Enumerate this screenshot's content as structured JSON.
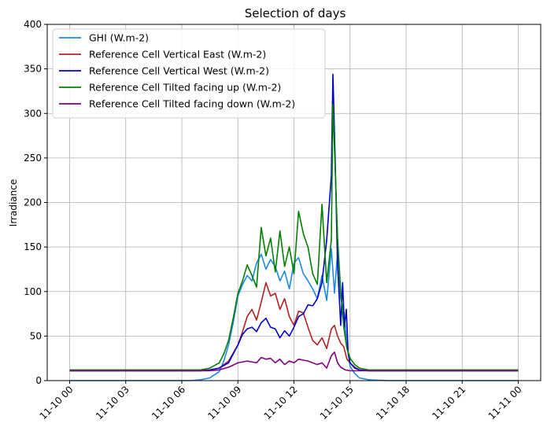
{
  "chart_data": {
    "type": "line",
    "title": "Selection of days",
    "xlabel": "",
    "ylabel": "Irradiance",
    "ylim": [
      0,
      400
    ],
    "xlim": [
      "2023-11-09 22:48",
      "2023-11-11 01:12"
    ],
    "yticks": [
      0,
      50,
      100,
      150,
      200,
      250,
      300,
      350,
      400
    ],
    "xticks": [
      {
        "value": "2023-11-10 00:00",
        "label": "11-10 00"
      },
      {
        "value": "2023-11-10 03:00",
        "label": "11-10 03"
      },
      {
        "value": "2023-11-10 06:00",
        "label": "11-10 06"
      },
      {
        "value": "2023-11-10 09:00",
        "label": "11-10 09"
      },
      {
        "value": "2023-11-10 12:00",
        "label": "11-10 12"
      },
      {
        "value": "2023-11-10 15:00",
        "label": "11-10 15"
      },
      {
        "value": "2023-11-10 18:00",
        "label": "11-10 18"
      },
      {
        "value": "2023-11-10 21:00",
        "label": "11-10 21"
      },
      {
        "value": "2023-11-11 00:00",
        "label": "11-11 00"
      }
    ],
    "grid": true,
    "legend_position": "upper-left",
    "series": [
      {
        "name": "GHI (W.m-2)",
        "color": "#1e88e5",
        "x": [
          "2023-11-10 00:00",
          "2023-11-10 06:00",
          "2023-11-10 06:30",
          "2023-11-10 07:00",
          "2023-11-10 07:30",
          "2023-11-10 08:00",
          "2023-11-10 08:15",
          "2023-11-10 08:30",
          "2023-11-10 08:45",
          "2023-11-10 09:00",
          "2023-11-10 09:15",
          "2023-11-10 09:30",
          "2023-11-10 09:45",
          "2023-11-10 10:00",
          "2023-11-10 10:15",
          "2023-11-10 10:30",
          "2023-11-10 10:45",
          "2023-11-10 11:00",
          "2023-11-10 11:15",
          "2023-11-10 11:30",
          "2023-11-10 11:45",
          "2023-11-10 12:00",
          "2023-11-10 12:15",
          "2023-11-10 12:30",
          "2023-11-10 12:45",
          "2023-11-10 13:00",
          "2023-11-10 13:15",
          "2023-11-10 13:30",
          "2023-11-10 13:45",
          "2023-11-10 14:00",
          "2023-11-10 14:10",
          "2023-11-10 14:20",
          "2023-11-10 14:30",
          "2023-11-10 14:40",
          "2023-11-10 14:50",
          "2023-11-10 15:00",
          "2023-11-10 15:15",
          "2023-11-10 15:30",
          "2023-11-10 16:00",
          "2023-11-10 17:00",
          "2023-11-11 00:00"
        ],
        "y": [
          0,
          0,
          0,
          1,
          3,
          10,
          22,
          40,
          65,
          95,
          108,
          118,
          112,
          132,
          142,
          125,
          136,
          128,
          112,
          123,
          103,
          132,
          138,
          120,
          112,
          103,
          92,
          118,
          90,
          148,
          98,
          144,
          92,
          78,
          40,
          16,
          8,
          3,
          1,
          0,
          0
        ]
      },
      {
        "name": "Reference Cell Vertical East (W.m-2)",
        "color": "#b22222",
        "x": [
          "2023-11-10 00:00",
          "2023-11-10 06:00",
          "2023-11-10 07:00",
          "2023-11-10 07:30",
          "2023-11-10 08:00",
          "2023-11-10 08:30",
          "2023-11-10 09:00",
          "2023-11-10 09:15",
          "2023-11-10 09:30",
          "2023-11-10 09:45",
          "2023-11-10 10:00",
          "2023-11-10 10:15",
          "2023-11-10 10:30",
          "2023-11-10 10:45",
          "2023-11-10 11:00",
          "2023-11-10 11:15",
          "2023-11-10 11:30",
          "2023-11-10 11:45",
          "2023-11-10 12:00",
          "2023-11-10 12:15",
          "2023-11-10 12:30",
          "2023-11-10 12:45",
          "2023-11-10 13:00",
          "2023-11-10 13:15",
          "2023-11-10 13:30",
          "2023-11-10 13:45",
          "2023-11-10 14:00",
          "2023-11-10 14:10",
          "2023-11-10 14:20",
          "2023-11-10 14:30",
          "2023-11-10 14:40",
          "2023-11-10 14:50",
          "2023-11-10 15:00",
          "2023-11-10 15:15",
          "2023-11-10 15:30",
          "2023-11-10 16:00",
          "2023-11-11 00:00"
        ],
        "y": [
          11,
          11,
          11,
          12,
          14,
          22,
          40,
          55,
          72,
          80,
          68,
          88,
          110,
          95,
          98,
          80,
          92,
          72,
          62,
          78,
          76,
          60,
          45,
          40,
          48,
          36,
          58,
          62,
          50,
          42,
          38,
          24,
          20,
          15,
          12,
          11,
          11
        ]
      },
      {
        "name": "Reference Cell Vertical West (W.m-2)",
        "color": "#0000cc",
        "x": [
          "2023-11-10 00:00",
          "2023-11-10 06:00",
          "2023-11-10 07:00",
          "2023-11-10 07:30",
          "2023-11-10 08:00",
          "2023-11-10 08:30",
          "2023-11-10 09:00",
          "2023-11-10 09:15",
          "2023-11-10 09:30",
          "2023-11-10 09:45",
          "2023-11-10 10:00",
          "2023-11-10 10:15",
          "2023-11-10 10:30",
          "2023-11-10 10:45",
          "2023-11-10 11:00",
          "2023-11-10 11:15",
          "2023-11-10 11:30",
          "2023-11-10 11:45",
          "2023-11-10 12:00",
          "2023-11-10 12:15",
          "2023-11-10 12:30",
          "2023-11-10 12:45",
          "2023-11-10 13:00",
          "2023-11-10 13:15",
          "2023-11-10 13:30",
          "2023-11-10 13:45",
          "2023-11-10 14:00",
          "2023-11-10 14:05",
          "2023-11-10 14:12",
          "2023-11-10 14:20",
          "2023-11-10 14:30",
          "2023-11-10 14:36",
          "2023-11-10 14:42",
          "2023-11-10 14:48",
          "2023-11-10 14:54",
          "2023-11-10 15:00",
          "2023-11-10 15:15",
          "2023-11-10 15:30",
          "2023-11-10 16:00",
          "2023-11-11 00:00"
        ],
        "y": [
          11,
          11,
          11,
          12,
          14,
          20,
          40,
          52,
          58,
          60,
          55,
          65,
          70,
          60,
          58,
          48,
          56,
          50,
          60,
          72,
          75,
          85,
          84,
          92,
          110,
          158,
          230,
          344,
          250,
          130,
          62,
          110,
          60,
          80,
          30,
          20,
          14,
          12,
          11,
          11
        ]
      },
      {
        "name": "Reference Cell Tilted facing up (W.m-2)",
        "color": "#008000",
        "x": [
          "2023-11-10 00:00",
          "2023-11-10 06:00",
          "2023-11-10 07:00",
          "2023-11-10 07:30",
          "2023-11-10 08:00",
          "2023-11-10 08:15",
          "2023-11-10 08:30",
          "2023-11-10 08:45",
          "2023-11-10 09:00",
          "2023-11-10 09:15",
          "2023-11-10 09:30",
          "2023-11-10 09:45",
          "2023-11-10 10:00",
          "2023-11-10 10:15",
          "2023-11-10 10:30",
          "2023-11-10 10:45",
          "2023-11-10 11:00",
          "2023-11-10 11:15",
          "2023-11-10 11:30",
          "2023-11-10 11:45",
          "2023-11-10 12:00",
          "2023-11-10 12:15",
          "2023-11-10 12:30",
          "2023-11-10 12:45",
          "2023-11-10 13:00",
          "2023-11-10 13:15",
          "2023-11-10 13:30",
          "2023-11-10 13:45",
          "2023-11-10 14:00",
          "2023-11-10 14:05",
          "2023-11-10 14:12",
          "2023-11-10 14:20",
          "2023-11-10 14:30",
          "2023-11-10 14:40",
          "2023-11-10 14:50",
          "2023-11-10 15:00",
          "2023-11-10 15:15",
          "2023-11-10 15:30",
          "2023-11-10 16:00",
          "2023-11-11 00:00"
        ],
        "y": [
          12,
          12,
          12,
          14,
          20,
          30,
          45,
          70,
          98,
          112,
          130,
          118,
          105,
          172,
          140,
          160,
          122,
          168,
          128,
          150,
          120,
          190,
          165,
          150,
          120,
          108,
          198,
          110,
          158,
          310,
          240,
          160,
          100,
          60,
          36,
          25,
          18,
          14,
          12,
          12
        ]
      },
      {
        "name": "Reference Cell Tilted facing down (W.m-2)",
        "color": "#800080",
        "x": [
          "2023-11-10 00:00",
          "2023-11-10 06:00",
          "2023-11-10 07:30",
          "2023-11-10 08:00",
          "2023-11-10 08:30",
          "2023-11-10 09:00",
          "2023-11-10 09:30",
          "2023-11-10 10:00",
          "2023-11-10 10:15",
          "2023-11-10 10:30",
          "2023-11-10 10:45",
          "2023-11-10 11:00",
          "2023-11-10 11:15",
          "2023-11-10 11:30",
          "2023-11-10 11:45",
          "2023-11-10 12:00",
          "2023-11-10 12:15",
          "2023-11-10 12:30",
          "2023-11-10 12:45",
          "2023-11-10 13:00",
          "2023-11-10 13:15",
          "2023-11-10 13:30",
          "2023-11-10 13:45",
          "2023-11-10 14:00",
          "2023-11-10 14:10",
          "2023-11-10 14:20",
          "2023-11-10 14:30",
          "2023-11-10 14:45",
          "2023-11-10 15:00",
          "2023-11-10 15:30",
          "2023-11-11 00:00"
        ],
        "y": [
          11,
          11,
          11,
          12,
          15,
          20,
          22,
          20,
          26,
          24,
          25,
          20,
          24,
          18,
          22,
          20,
          24,
          23,
          22,
          20,
          18,
          20,
          14,
          28,
          32,
          20,
          15,
          12,
          11,
          11,
          11
        ]
      }
    ]
  }
}
